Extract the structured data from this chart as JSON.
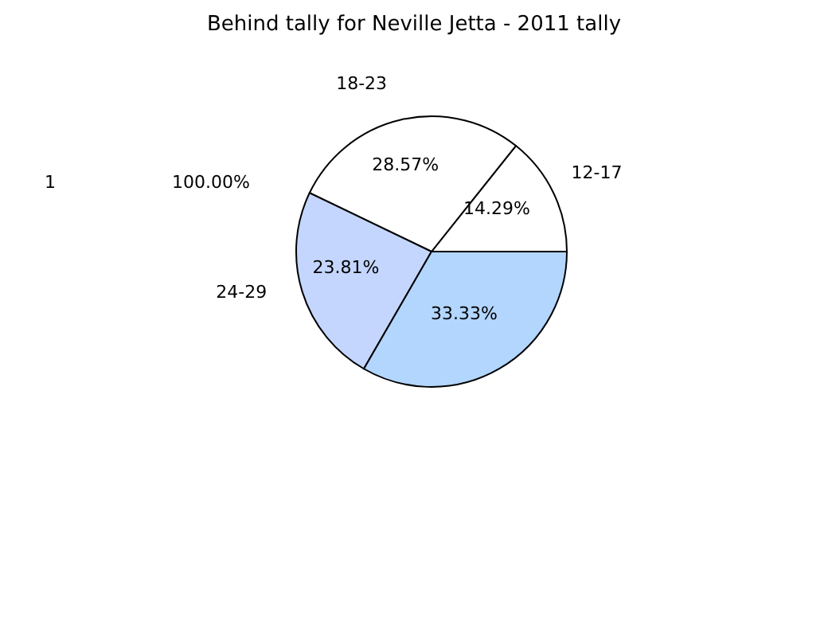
{
  "chart_data": {
    "type": "pie",
    "title": "Behind tally for Neville Jetta - 2011 tally",
    "categories": [
      "12-17",
      "18-23",
      "24-29",
      null
    ],
    "values": [
      14.29,
      28.57,
      23.81,
      33.33
    ],
    "value_labels": [
      "14.29%",
      "28.57%",
      "23.81%",
      "33.33%"
    ],
    "colors": [
      "#ffffff",
      "#ffffff",
      "#c4d6fe",
      "#b3d6fe"
    ],
    "annotations": [
      "1",
      "100.00%"
    ],
    "legend": false
  }
}
